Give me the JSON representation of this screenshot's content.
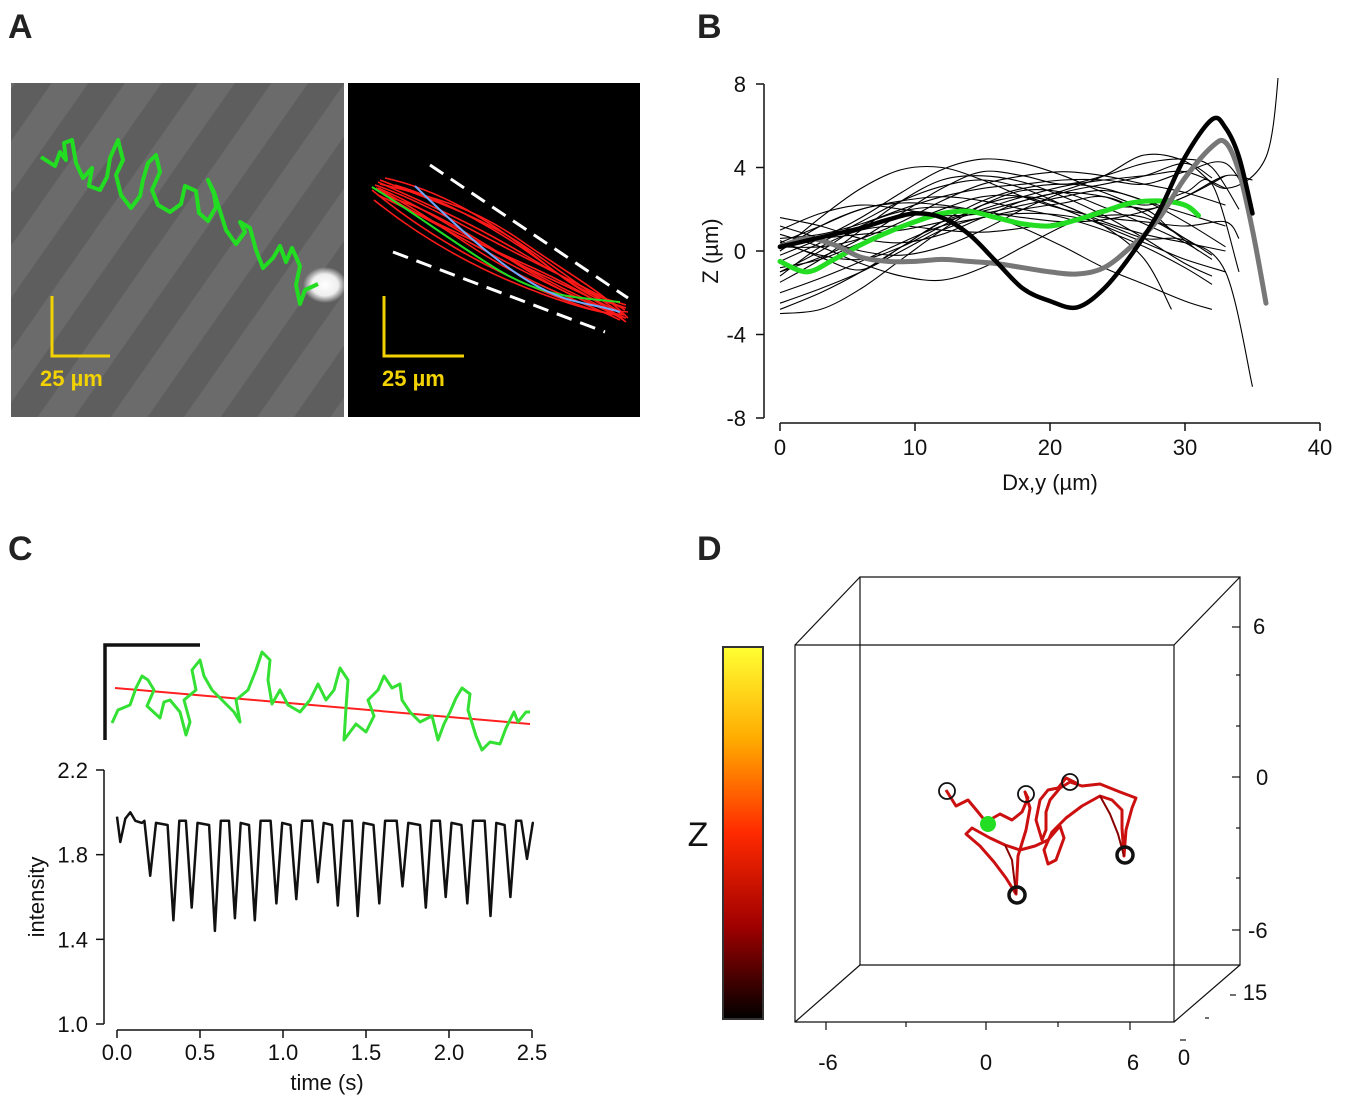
{
  "panels": {
    "a": "A",
    "b": "B",
    "c": "C",
    "d": "D"
  },
  "panel_a": {
    "scale_left": "25 µm",
    "scale_right": "25 µm"
  },
  "colorbar": {
    "label": "Z"
  },
  "chart_data": [
    {
      "panel": "B",
      "type": "line",
      "xlabel": "Dx,y (µm)",
      "ylabel": "Z (µm)",
      "xlim": [
        0,
        40
      ],
      "ylim": [
        -8,
        8
      ],
      "xticks": [
        0,
        10,
        20,
        30,
        40
      ],
      "yticks": [
        -8,
        -4,
        0,
        4,
        8
      ],
      "series": [
        {
          "color": "#000000",
          "x": [
            0,
            2,
            4,
            6,
            8,
            10,
            12,
            14,
            16,
            18,
            20,
            22,
            24,
            26,
            28,
            30,
            32,
            33,
            34,
            35
          ],
          "y": [
            0.2,
            0.5,
            0.8,
            1.1,
            1.5,
            1.8,
            1.6,
            0.8,
            -0.5,
            -1.8,
            -2.4,
            -2.7,
            -1.8,
            -0.2,
            1.8,
            4.5,
            6.3,
            5.9,
            4.5,
            1.8
          ]
        },
        {
          "color": "#777777",
          "x": [
            0,
            2,
            4,
            6,
            8,
            10,
            12,
            14,
            16,
            18,
            20,
            22,
            24,
            26,
            28,
            30,
            32,
            33,
            34,
            35,
            36
          ],
          "y": [
            0.2,
            0.6,
            0.3,
            -0.3,
            -0.5,
            -0.5,
            -0.4,
            -0.5,
            -0.6,
            -0.8,
            -1.0,
            -1.1,
            -0.8,
            0.2,
            1.5,
            3.5,
            5.0,
            5.2,
            3.8,
            1.0,
            -2.5
          ]
        },
        {
          "color": "#22dd22",
          "x": [
            0,
            2,
            4,
            6,
            8,
            10,
            12,
            14,
            16,
            18,
            20,
            22,
            24,
            26,
            28,
            30,
            31
          ],
          "y": [
            -0.5,
            -1.0,
            -0.4,
            0.3,
            0.9,
            1.4,
            1.8,
            1.9,
            1.6,
            1.3,
            1.2,
            1.5,
            1.9,
            2.3,
            2.4,
            2.2,
            1.7
          ]
        }
      ],
      "trajectories": [
        {
          "x": [
            0,
            3,
            6,
            9,
            12,
            15,
            18,
            21,
            24,
            27,
            30,
            32,
            34
          ],
          "y": [
            -1.0,
            -0.3,
            0.6,
            1.8,
            3.0,
            3.8,
            3.6,
            3.2,
            3.6,
            4.2,
            4.4,
            4.0,
            2.0
          ]
        },
        {
          "x": [
            0,
            3,
            6,
            9,
            12,
            15,
            18,
            21,
            24,
            27,
            30,
            33
          ],
          "y": [
            0.5,
            -0.3,
            -0.9,
            0.2,
            1.4,
            2.0,
            2.6,
            3.1,
            3.4,
            3.6,
            3.8,
            3.0
          ]
        },
        {
          "x": [
            0,
            3,
            6,
            9,
            12,
            15,
            18,
            21,
            24,
            27,
            30,
            33
          ],
          "y": [
            1.0,
            1.8,
            2.2,
            2.0,
            1.7,
            1.8,
            2.2,
            2.6,
            2.9,
            2.4,
            1.4,
            0.2
          ]
        },
        {
          "x": [
            0,
            3,
            6,
            9,
            12,
            15,
            18,
            21,
            24,
            27,
            30,
            31
          ],
          "y": [
            -2.0,
            -1.3,
            -0.5,
            0.4,
            1.2,
            1.6,
            2.0,
            2.3,
            2.6,
            1.8,
            0.6,
            0.2
          ]
        },
        {
          "x": [
            0,
            3,
            6,
            9,
            12,
            15,
            18,
            21,
            24,
            27,
            30,
            32
          ],
          "y": [
            -1.5,
            -0.4,
            1.0,
            2.4,
            3.4,
            3.6,
            3.3,
            2.6,
            1.7,
            0.6,
            -0.6,
            -1.2
          ]
        },
        {
          "x": [
            0,
            3,
            6,
            9,
            12,
            15,
            18,
            21,
            24,
            27,
            30,
            32
          ],
          "y": [
            0.0,
            1.2,
            2.0,
            2.4,
            2.6,
            2.4,
            2.0,
            1.6,
            1.0,
            0.2,
            -0.8,
            -1.6
          ]
        },
        {
          "x": [
            0,
            3,
            6,
            9,
            12,
            15,
            18,
            21,
            24,
            27,
            30,
            33,
            35
          ],
          "y": [
            0.6,
            0.8,
            1.3,
            2.0,
            2.6,
            3.0,
            3.2,
            3.4,
            3.4,
            3.2,
            3.8,
            4.2,
            2.2
          ]
        },
        {
          "x": [
            0,
            3,
            6,
            9,
            12,
            15,
            18,
            21,
            24,
            27,
            30,
            33
          ],
          "y": [
            -0.5,
            0.4,
            1.4,
            2.4,
            3.1,
            3.4,
            3.0,
            2.2,
            1.4,
            0.8,
            0.4,
            0.0
          ]
        },
        {
          "x": [
            0,
            3,
            6,
            9,
            12,
            15,
            18,
            21,
            24,
            27,
            30,
            33,
            35
          ],
          "y": [
            -2.5,
            -1.8,
            -1.0,
            0.0,
            1.0,
            1.6,
            1.8,
            1.7,
            1.3,
            0.6,
            0.5,
            -1.0,
            -6.5
          ]
        },
        {
          "x": [
            0,
            3,
            6,
            9,
            12,
            15,
            18,
            21,
            24,
            27,
            30,
            32,
            34
          ],
          "y": [
            -0.2,
            0.6,
            1.6,
            2.8,
            3.9,
            4.4,
            4.2,
            3.6,
            2.8,
            2.2,
            2.8,
            3.2,
            -1.0
          ]
        },
        {
          "x": [
            0,
            3,
            6,
            9,
            12,
            15,
            18,
            21,
            24,
            27,
            30,
            32
          ],
          "y": [
            1.2,
            0.6,
            0.0,
            -0.2,
            0.2,
            1.0,
            2.0,
            2.8,
            3.2,
            3.6,
            4.2,
            3.5
          ]
        },
        {
          "x": [
            0,
            3,
            6,
            9,
            12,
            15,
            18,
            21,
            24,
            27,
            30,
            33,
            35
          ],
          "y": [
            0.4,
            1.2,
            2.0,
            2.3,
            2.2,
            1.9,
            1.6,
            1.4,
            1.5,
            1.9,
            2.6,
            3.6,
            3.4
          ]
        },
        {
          "x": [
            0,
            3,
            6,
            9,
            12,
            15,
            18,
            21,
            24,
            27,
            30,
            32
          ],
          "y": [
            -1.0,
            0.0,
            1.2,
            1.9,
            2.1,
            1.8,
            1.1,
            0.2,
            -0.8,
            -1.6,
            -2.4,
            -2.8
          ]
        },
        {
          "x": [
            0,
            3,
            6,
            9,
            12,
            15,
            18,
            21,
            24,
            27,
            29,
            31
          ],
          "y": [
            0.8,
            0.2,
            -0.6,
            -1.2,
            -1.4,
            -0.8,
            0.2,
            1.2,
            2.0,
            2.0,
            1.0,
            0.0
          ]
        },
        {
          "x": [
            0,
            3,
            6,
            9,
            12,
            15,
            18,
            21,
            24,
            27,
            30,
            33
          ],
          "y": [
            -2.8,
            -2.0,
            -1.0,
            0.2,
            1.4,
            2.4,
            3.0,
            3.2,
            3.0,
            2.4,
            1.8,
            1.2
          ]
        },
        {
          "x": [
            0,
            3,
            6,
            9,
            12,
            15,
            18,
            21,
            24,
            27,
            30,
            33,
            36,
            37
          ],
          "y": [
            0.3,
            0.6,
            0.8,
            1.0,
            1.4,
            1.9,
            2.4,
            2.9,
            3.6,
            4.6,
            4.3,
            3.0,
            4.5,
            9.0
          ]
        },
        {
          "x": [
            0,
            3,
            6,
            9,
            12,
            15,
            18,
            21,
            24,
            27,
            30,
            32
          ],
          "y": [
            -3.0,
            -2.8,
            -1.8,
            -0.4,
            1.0,
            2.2,
            2.9,
            2.8,
            2.1,
            1.3,
            0.4,
            -0.4
          ]
        },
        {
          "x": [
            0,
            3,
            6,
            9,
            12,
            15,
            18,
            21,
            24,
            27,
            30,
            33
          ],
          "y": [
            1.6,
            1.2,
            0.6,
            0.4,
            0.8,
            1.6,
            2.4,
            2.8,
            2.6,
            2.0,
            2.6,
            3.6
          ]
        },
        {
          "x": [
            0,
            3,
            6,
            9,
            12,
            15,
            18,
            21,
            24,
            27,
            30,
            33
          ],
          "y": [
            -0.8,
            -0.4,
            0.4,
            1.2,
            2.0,
            2.6,
            2.6,
            2.0,
            1.2,
            0.4,
            -0.4,
            -1.0
          ]
        },
        {
          "x": [
            0,
            3,
            6,
            9,
            12,
            15,
            18,
            21,
            24,
            27,
            30,
            33,
            34
          ],
          "y": [
            0.0,
            1.6,
            3.0,
            3.9,
            4.0,
            3.4,
            2.6,
            2.0,
            1.6,
            1.4,
            1.2,
            1.4,
            0.6
          ]
        },
        {
          "x": [
            0,
            3,
            6,
            9,
            12,
            15,
            18,
            21,
            24,
            27,
            30,
            33
          ],
          "y": [
            0.2,
            0.2,
            0.6,
            1.4,
            2.4,
            3.2,
            3.6,
            3.8,
            3.6,
            3.2,
            2.8,
            2.2
          ]
        },
        {
          "x": [
            0,
            3,
            6,
            9,
            12,
            15,
            18,
            21,
            24,
            27,
            30,
            32
          ],
          "y": [
            -1.2,
            0.2,
            1.0,
            1.2,
            1.0,
            0.9,
            1.1,
            1.4,
            1.7,
            1.6,
            0.6,
            -0.2
          ]
        },
        {
          "x": [
            0,
            3,
            6,
            9,
            12,
            15,
            18,
            21,
            24,
            27,
            29
          ],
          "y": [
            0.4,
            -0.2,
            -0.4,
            0.2,
            1.2,
            2.2,
            2.6,
            2.2,
            1.2,
            -0.4,
            -2.8
          ]
        }
      ]
    },
    {
      "panel": "C",
      "type": "line",
      "xlabel": "time (s)",
      "ylabel": "intensity",
      "xlim": [
        0,
        2.5
      ],
      "ylim": [
        1.0,
        2.2
      ],
      "xticks": [
        "0.0",
        "0.5",
        "1.0",
        "1.5",
        "2.0",
        "2.5"
      ],
      "yticks": [
        "1.0",
        "1.4",
        "1.8",
        "2.2"
      ],
      "troughs": [
        {
          "t": 0.2,
          "v": 1.7
        },
        {
          "t": 0.34,
          "v": 1.49
        },
        {
          "t": 0.45,
          "v": 1.55
        },
        {
          "t": 0.59,
          "v": 1.44
        },
        {
          "t": 0.71,
          "v": 1.5
        },
        {
          "t": 0.83,
          "v": 1.49
        },
        {
          "t": 0.96,
          "v": 1.57
        },
        {
          "t": 1.08,
          "v": 1.59
        },
        {
          "t": 1.21,
          "v": 1.67
        },
        {
          "t": 1.33,
          "v": 1.56
        },
        {
          "t": 1.45,
          "v": 1.51
        },
        {
          "t": 1.58,
          "v": 1.57
        },
        {
          "t": 1.72,
          "v": 1.65
        },
        {
          "t": 1.86,
          "v": 1.55
        },
        {
          "t": 1.98,
          "v": 1.6
        },
        {
          "t": 2.11,
          "v": 1.57
        },
        {
          "t": 2.25,
          "v": 1.51
        },
        {
          "t": 2.37,
          "v": 1.6
        },
        {
          "t": 2.47,
          "v": 1.78
        }
      ],
      "peak_level": 1.96
    },
    {
      "panel": "D",
      "type": "line",
      "x_ticks": [
        "-6",
        "0",
        "6"
      ],
      "y_ticks": [
        "0",
        "15"
      ],
      "z_ticks": [
        "6",
        "0",
        "-6"
      ],
      "colorbar_label": "Z"
    }
  ]
}
